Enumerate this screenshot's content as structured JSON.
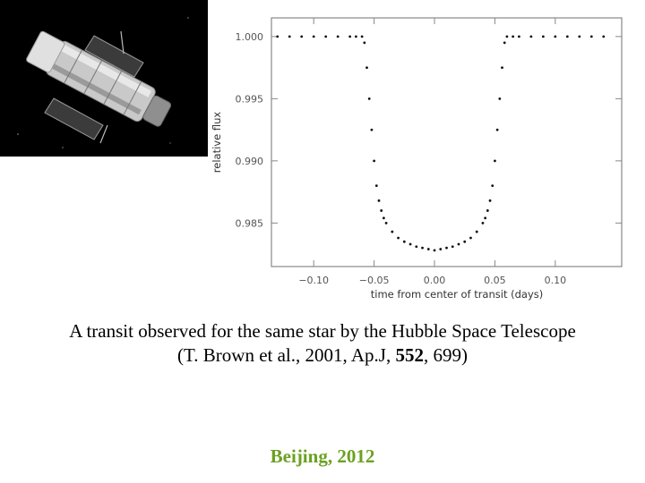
{
  "caption": {
    "line1": "A transit observed for the same star by the Hubble Space Telescope",
    "line2_prefix": "(T. Brown et al., 2001, Ap.J, ",
    "line2_volume": "552",
    "line2_suffix": ", 699)"
  },
  "footer": {
    "text": "Beijing, 2012",
    "color": "#6aa121"
  },
  "colors": {
    "photo_background": "#000000",
    "axis": "#888888",
    "points": "#111111"
  },
  "photo": {
    "subject": "hubble-space-telescope"
  },
  "chart_data": {
    "type": "scatter",
    "title": "",
    "xlabel": "time from center of transit (days)",
    "ylabel": "relative flux",
    "xlim": [
      -0.135,
      0.155
    ],
    "ylim": [
      0.9815,
      1.0015
    ],
    "xticks": [
      -0.1,
      -0.05,
      0.0,
      0.05,
      0.1
    ],
    "xtick_labels": [
      "−0.10",
      "−0.05",
      "0.00",
      "0.05",
      "0.10"
    ],
    "yticks": [
      1.0,
      0.995,
      0.99,
      0.985
    ],
    "ytick_labels": [
      "1.000",
      "0.995",
      "0.990",
      "0.985"
    ],
    "grid": false,
    "series": [
      {
        "x": [
          -0.13,
          -0.12,
          -0.11,
          -0.1,
          -0.09,
          -0.08,
          -0.07,
          -0.065,
          -0.06,
          -0.058,
          -0.056,
          -0.054,
          -0.052,
          -0.05,
          -0.048,
          -0.046,
          -0.044,
          -0.042,
          -0.04,
          -0.035,
          -0.03,
          -0.025,
          -0.02,
          -0.015,
          -0.01,
          -0.005,
          0.0,
          0.005,
          0.01,
          0.015,
          0.02,
          0.025,
          0.03,
          0.035,
          0.04,
          0.042,
          0.044,
          0.046,
          0.048,
          0.05,
          0.052,
          0.054,
          0.056,
          0.058,
          0.06,
          0.065,
          0.07,
          0.08,
          0.09,
          0.1,
          0.11,
          0.12,
          0.13,
          0.14
        ],
        "y": [
          1.0,
          1.0,
          1.0,
          1.0,
          1.0,
          1.0,
          1.0,
          1.0,
          1.0,
          0.9995,
          0.9975,
          0.995,
          0.9925,
          0.99,
          0.988,
          0.9868,
          0.986,
          0.9854,
          0.985,
          0.9843,
          0.9838,
          0.9835,
          0.9833,
          0.9831,
          0.983,
          0.9829,
          0.9828,
          0.9829,
          0.983,
          0.9831,
          0.9833,
          0.9835,
          0.9838,
          0.9843,
          0.985,
          0.9854,
          0.986,
          0.9868,
          0.988,
          0.99,
          0.9925,
          0.995,
          0.9975,
          0.9995,
          1.0,
          1.0,
          1.0,
          1.0,
          1.0,
          1.0,
          1.0,
          1.0,
          1.0,
          1.0
        ]
      }
    ]
  }
}
